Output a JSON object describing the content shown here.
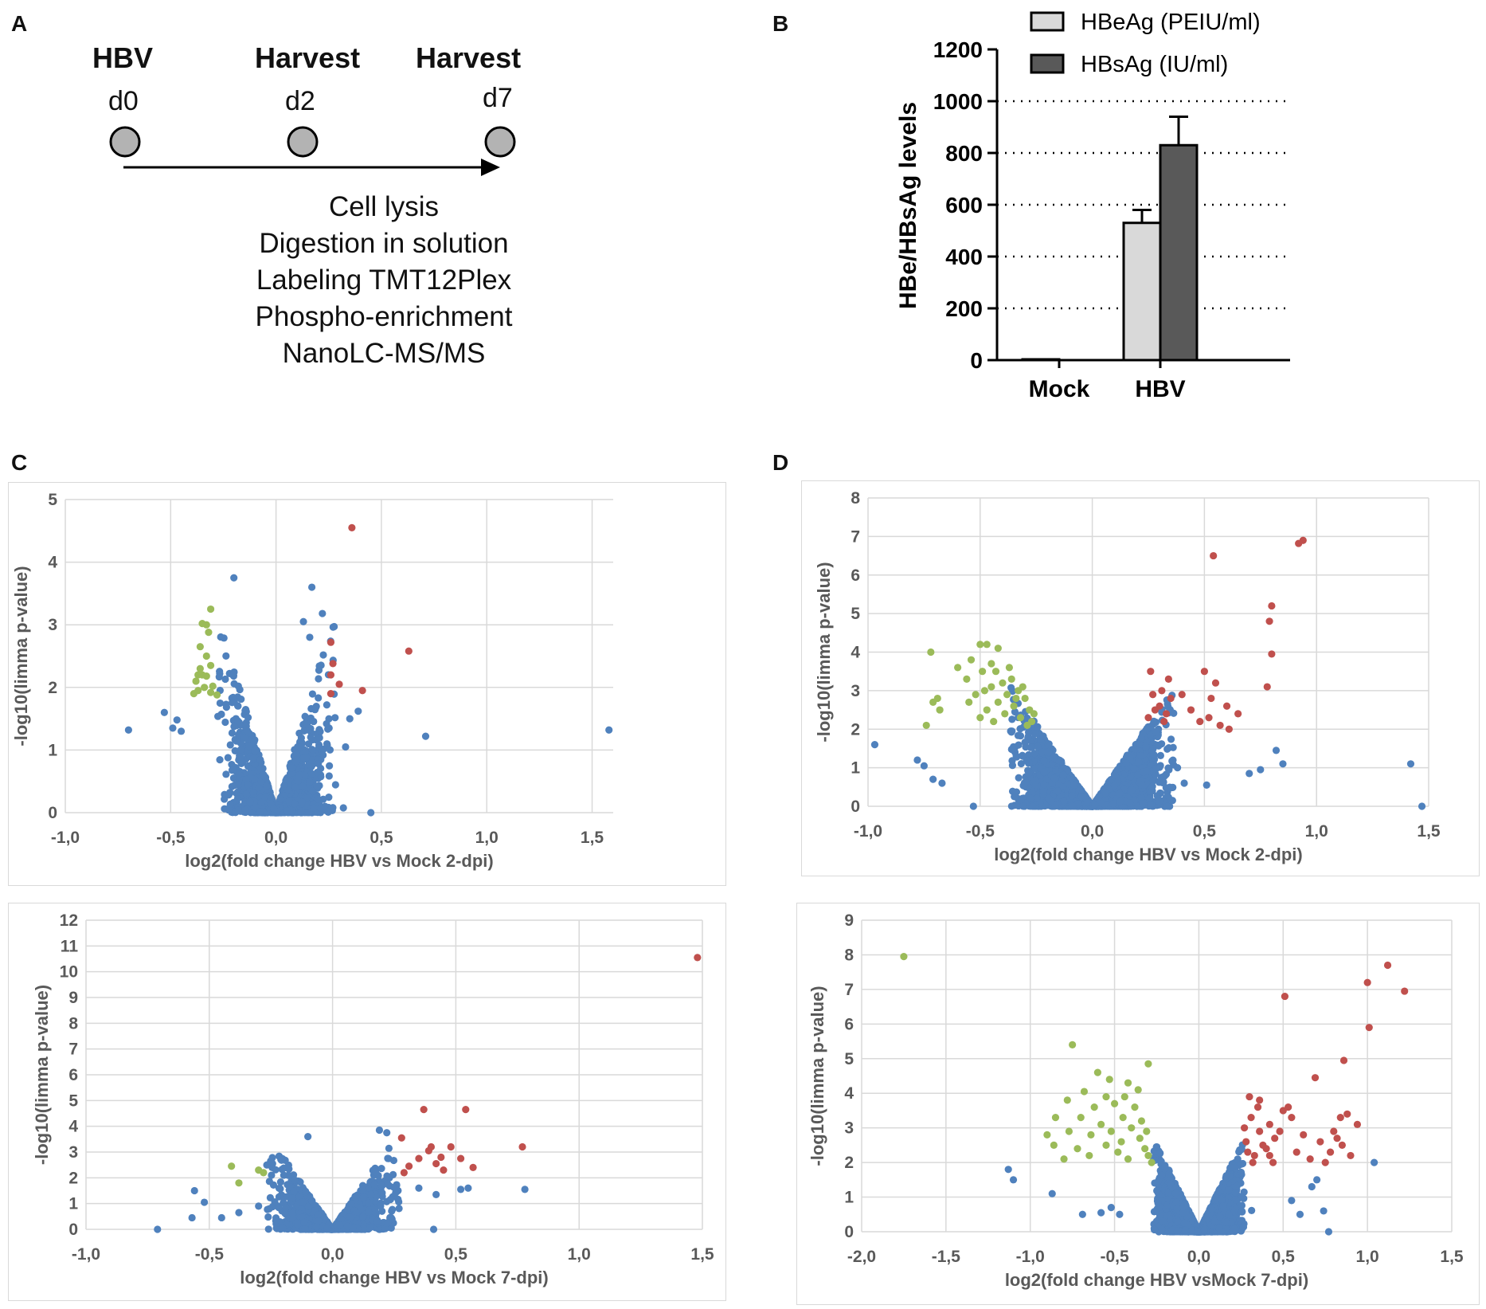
{
  "panel_labels": {
    "a": "A",
    "b": "B",
    "c": "C",
    "d": "D"
  },
  "timeline": {
    "events": [
      {
        "title": "HBV",
        "day": "d0"
      },
      {
        "title": "Harvest",
        "day": "d2"
      },
      {
        "title": "Harvest",
        "day": "d7"
      }
    ],
    "steps": [
      "Cell lysis",
      "Digestion in solution",
      "Labeling TMT12Plex",
      "Phospho-enrichment",
      "NanoLC-MS/MS"
    ]
  },
  "colors": {
    "up": "#c0504d",
    "down": "#9bbb59",
    "ns": "#4f81bd",
    "grid": "#d9d9d9",
    "hbeag": "#d9d9d9",
    "hbsag": "#595959"
  },
  "chart_data": [
    {
      "id": "B",
      "type": "bar",
      "categories": [
        "Mock",
        "HBV"
      ],
      "series": [
        {
          "name": "HBeAg (PEIU/ml)",
          "values": [
            3,
            530
          ],
          "errors": [
            0,
            50
          ]
        },
        {
          "name": "HBsAg (IU/ml)",
          "values": [
            0,
            830
          ],
          "errors": [
            0,
            110
          ]
        }
      ],
      "ylabel": "HBe/HBsAg levels",
      "ylim": [
        0,
        1200
      ],
      "yticks": [
        0,
        200,
        400,
        600,
        800,
        1000,
        1200
      ],
      "legend": "top"
    },
    {
      "id": "C-top",
      "type": "scatter",
      "xlabel": "log2(fold change HBV vs Mock 2-dpi)",
      "ylabel": "-log10(limma p-value)",
      "xlim": [
        -1.0,
        1.6
      ],
      "ylim": [
        0,
        5
      ],
      "xticks": [
        "-1,0",
        "-0,5",
        "0,0",
        "0,5",
        "1,0",
        "1,5"
      ],
      "yticks": [
        "0",
        "1",
        "2",
        "3",
        "4",
        "5"
      ],
      "highlight": {
        "up": [
          [
            0.36,
            4.55
          ],
          [
            0.63,
            2.58
          ],
          [
            0.26,
            2.72
          ],
          [
            0.27,
            2.38
          ],
          [
            0.26,
            2.2
          ],
          [
            0.3,
            2.05
          ],
          [
            0.41,
            1.95
          ],
          [
            0.26,
            1.9
          ]
        ],
        "down": [
          [
            -0.31,
            3.25
          ],
          [
            -0.33,
            3.0
          ],
          [
            -0.35,
            3.02
          ],
          [
            -0.32,
            2.88
          ],
          [
            -0.36,
            2.65
          ],
          [
            -0.31,
            2.35
          ],
          [
            -0.37,
            2.2
          ],
          [
            -0.35,
            2.2
          ],
          [
            -0.33,
            2.18
          ],
          [
            -0.38,
            2.1
          ],
          [
            -0.3,
            2.02
          ],
          [
            -0.37,
            1.95
          ],
          [
            -0.34,
            2.0
          ],
          [
            -0.31,
            1.92
          ],
          [
            -0.39,
            1.9
          ],
          [
            -0.28,
            1.88
          ],
          [
            -0.36,
            2.3
          ],
          [
            -0.33,
            2.5
          ]
        ]
      },
      "outliers": [
        [
          -0.2,
          3.75
        ],
        [
          0.17,
          3.6
        ],
        [
          0.13,
          3.05
        ],
        [
          0.22,
          3.18
        ],
        [
          0.16,
          2.8
        ],
        [
          -0.7,
          1.32
        ],
        [
          -0.53,
          1.6
        ],
        [
          -0.49,
          1.35
        ],
        [
          -0.47,
          1.48
        ],
        [
          -0.45,
          1.3
        ],
        [
          0.45,
          0.0
        ],
        [
          0.71,
          1.22
        ],
        [
          1.58,
          1.32
        ],
        [
          0.39,
          1.62
        ],
        [
          0.35,
          1.5
        ],
        [
          0.33,
          1.05
        ]
      ],
      "cloud": {
        "count": 1400,
        "spread": 0.21,
        "slope": 11.5,
        "ymax": 3.0
      }
    },
    {
      "id": "C-bottom",
      "type": "scatter",
      "xlabel": "log2(fold change HBV vs Mock 7-dpi)",
      "ylabel": "-log10(limma p-value)",
      "xlim": [
        -1.0,
        1.5
      ],
      "ylim": [
        0,
        12
      ],
      "xticks": [
        "-1,0",
        "-0,5",
        "0,0",
        "0,5",
        "1,0",
        "1,5"
      ],
      "yticks": [
        "0",
        "1",
        "2",
        "3",
        "4",
        "5",
        "6",
        "7",
        "8",
        "9",
        "10",
        "11",
        "12"
      ],
      "highlight": {
        "up": [
          [
            1.48,
            10.55
          ],
          [
            0.37,
            4.65
          ],
          [
            0.54,
            4.65
          ],
          [
            0.28,
            3.55
          ],
          [
            0.4,
            3.2
          ],
          [
            0.48,
            3.2
          ],
          [
            0.39,
            3.05
          ],
          [
            0.77,
            3.2
          ],
          [
            0.35,
            2.75
          ],
          [
            0.42,
            2.55
          ],
          [
            0.44,
            2.8
          ],
          [
            0.31,
            2.45
          ],
          [
            0.29,
            2.2
          ],
          [
            0.57,
            2.4
          ],
          [
            0.52,
            2.75
          ],
          [
            0.45,
            2.3
          ]
        ],
        "down": [
          [
            -0.41,
            2.45
          ],
          [
            -0.38,
            1.8
          ],
          [
            -0.3,
            2.3
          ],
          [
            -0.28,
            2.2
          ]
        ]
      },
      "outliers": [
        [
          -0.71,
          0.0
        ],
        [
          -0.57,
          0.45
        ],
        [
          -0.56,
          1.5
        ],
        [
          -0.52,
          1.05
        ],
        [
          -0.45,
          0.45
        ],
        [
          -0.38,
          0.65
        ],
        [
          -0.3,
          0.9
        ],
        [
          0.78,
          1.55
        ],
        [
          0.55,
          1.6
        ],
        [
          0.52,
          1.55
        ],
        [
          0.41,
          0.0
        ],
        [
          -0.1,
          3.6
        ],
        [
          0.19,
          3.85
        ],
        [
          0.22,
          3.75
        ],
        [
          0.35,
          1.6
        ],
        [
          0.42,
          1.35
        ]
      ],
      "cloud": {
        "count": 1500,
        "spread": 0.2,
        "slope": 14,
        "ymax": 3.3
      }
    },
    {
      "id": "D-top",
      "type": "scatter",
      "xlabel": "log2(fold change HBV vs Mock 2-dpi)",
      "ylabel": "-log10(limma p-value)",
      "xlim": [
        -1.0,
        1.5
      ],
      "ylim": [
        0,
        8
      ],
      "xticks": [
        "-1,0",
        "-0,5",
        "0,0",
        "0,5",
        "1,0",
        "1,5"
      ],
      "yticks": [
        "0",
        "1",
        "2",
        "3",
        "4",
        "5",
        "6",
        "7",
        "8"
      ],
      "highlight": {
        "up": [
          [
            0.92,
            6.82
          ],
          [
            0.94,
            6.9
          ],
          [
            0.54,
            6.5
          ],
          [
            0.8,
            5.2
          ],
          [
            0.79,
            4.8
          ],
          [
            0.8,
            3.95
          ],
          [
            0.78,
            3.1
          ],
          [
            0.26,
            3.5
          ],
          [
            0.34,
            3.3
          ],
          [
            0.5,
            3.5
          ],
          [
            0.55,
            3.2
          ],
          [
            0.53,
            2.8
          ],
          [
            0.6,
            2.6
          ],
          [
            0.65,
            2.4
          ],
          [
            0.52,
            2.3
          ],
          [
            0.57,
            2.1
          ],
          [
            0.61,
            2.0
          ],
          [
            0.31,
            3.0
          ],
          [
            0.27,
            2.9
          ],
          [
            0.3,
            2.6
          ],
          [
            0.33,
            2.4
          ],
          [
            0.25,
            2.3
          ],
          [
            0.28,
            2.5
          ],
          [
            0.32,
            2.2
          ],
          [
            0.35,
            2.8
          ],
          [
            0.4,
            2.9
          ],
          [
            0.44,
            2.5
          ],
          [
            0.48,
            2.2
          ]
        ],
        "down": [
          [
            -0.72,
            4.0
          ],
          [
            -0.5,
            4.2
          ],
          [
            -0.47,
            4.2
          ],
          [
            -0.42,
            4.1
          ],
          [
            -0.54,
            3.8
          ],
          [
            -0.45,
            3.7
          ],
          [
            -0.49,
            3.5
          ],
          [
            -0.6,
            3.6
          ],
          [
            -0.56,
            3.3
          ],
          [
            -0.69,
            2.8
          ],
          [
            -0.68,
            2.5
          ],
          [
            -0.71,
            2.7
          ],
          [
            -0.74,
            2.1
          ],
          [
            -0.52,
            2.9
          ],
          [
            -0.55,
            2.7
          ],
          [
            -0.45,
            3.1
          ],
          [
            -0.4,
            3.2
          ],
          [
            -0.36,
            3.3
          ],
          [
            -0.33,
            3.0
          ],
          [
            -0.3,
            2.8
          ],
          [
            -0.28,
            2.5
          ],
          [
            -0.35,
            2.6
          ],
          [
            -0.32,
            2.3
          ],
          [
            -0.29,
            2.1
          ],
          [
            -0.27,
            2.2
          ],
          [
            -0.38,
            2.9
          ],
          [
            -0.42,
            2.7
          ],
          [
            -0.47,
            2.5
          ],
          [
            -0.5,
            2.3
          ],
          [
            -0.44,
            2.2
          ],
          [
            -0.39,
            2.4
          ],
          [
            -0.34,
            2.8
          ],
          [
            -0.31,
            3.1
          ],
          [
            -0.26,
            2.4
          ],
          [
            -0.43,
            3.5
          ],
          [
            -0.37,
            3.6
          ],
          [
            -0.48,
            3.0
          ]
        ]
      },
      "outliers": [
        [
          -0.97,
          1.6
        ],
        [
          -0.78,
          1.2
        ],
        [
          -0.75,
          1.05
        ],
        [
          -0.71,
          0.7
        ],
        [
          -0.67,
          0.6
        ],
        [
          -0.53,
          0.0
        ],
        [
          1.42,
          1.1
        ],
        [
          1.47,
          0.0
        ],
        [
          0.85,
          1.1
        ],
        [
          0.82,
          1.45
        ],
        [
          0.75,
          0.95
        ],
        [
          0.7,
          0.85
        ],
        [
          0.51,
          0.55
        ],
        [
          0.41,
          0.6
        ],
        [
          0.38,
          1.0
        ]
      ],
      "cloud": {
        "count": 3400,
        "spread": 0.27,
        "slope": 8.5,
        "ymax": 3.1
      }
    },
    {
      "id": "D-bottom",
      "type": "scatter",
      "xlabel": "log2(fold change HBV vsMock 7-dpi)",
      "ylabel": "-log10(limma p-value)",
      "xlim": [
        -2.0,
        1.5
      ],
      "ylim": [
        0,
        9
      ],
      "xticks": [
        "-2,0",
        "-1,5",
        "-1,0",
        "-0,5",
        "0,0",
        "0,5",
        "1,0",
        "1,5"
      ],
      "yticks": [
        "0",
        "1",
        "2",
        "3",
        "4",
        "5",
        "6",
        "7",
        "8",
        "9"
      ],
      "highlight": {
        "up": [
          [
            1.12,
            7.7
          ],
          [
            1.22,
            6.95
          ],
          [
            1.0,
            7.2
          ],
          [
            0.51,
            6.8
          ],
          [
            1.01,
            5.9
          ],
          [
            0.86,
            4.95
          ],
          [
            0.69,
            4.45
          ],
          [
            0.3,
            3.9
          ],
          [
            0.35,
            3.6
          ],
          [
            0.5,
            3.5
          ],
          [
            0.55,
            3.3
          ],
          [
            0.62,
            2.8
          ],
          [
            0.72,
            2.6
          ],
          [
            0.8,
            2.9
          ],
          [
            0.84,
            3.3
          ],
          [
            0.88,
            3.4
          ],
          [
            0.94,
            3.1
          ],
          [
            0.85,
            2.5
          ],
          [
            0.78,
            2.3
          ],
          [
            0.66,
            2.1
          ],
          [
            0.58,
            2.3
          ],
          [
            0.45,
            2.7
          ],
          [
            0.42,
            3.1
          ],
          [
            0.38,
            2.5
          ],
          [
            0.33,
            2.2
          ],
          [
            0.28,
            2.6
          ],
          [
            0.27,
            3.0
          ],
          [
            0.31,
            3.3
          ],
          [
            0.36,
            3.8
          ],
          [
            0.42,
            2.2
          ],
          [
            0.48,
            2.9
          ],
          [
            0.53,
            3.6
          ],
          [
            0.4,
            2.4
          ],
          [
            0.32,
            2.0
          ],
          [
            0.29,
            2.3
          ],
          [
            0.36,
            2.9
          ],
          [
            0.44,
            2.0
          ],
          [
            0.75,
            2.0
          ],
          [
            0.9,
            2.2
          ],
          [
            0.82,
            2.7
          ]
        ],
        "down": [
          [
            -1.75,
            7.95
          ],
          [
            -0.75,
            5.4
          ],
          [
            -0.3,
            4.85
          ],
          [
            -0.6,
            4.6
          ],
          [
            -0.42,
            4.3
          ],
          [
            -0.53,
            4.4
          ],
          [
            -0.68,
            4.05
          ],
          [
            -0.78,
            3.8
          ],
          [
            -0.85,
            3.3
          ],
          [
            -0.9,
            2.8
          ],
          [
            -0.72,
            2.4
          ],
          [
            -0.65,
            2.2
          ],
          [
            -0.8,
            2.1
          ],
          [
            -0.77,
            2.9
          ],
          [
            -0.62,
            3.6
          ],
          [
            -0.55,
            3.9
          ],
          [
            -0.5,
            3.7
          ],
          [
            -0.45,
            3.3
          ],
          [
            -0.4,
            3.0
          ],
          [
            -0.35,
            2.7
          ],
          [
            -0.32,
            2.4
          ],
          [
            -0.3,
            2.2
          ],
          [
            -0.28,
            2.0
          ],
          [
            -0.46,
            2.6
          ],
          [
            -0.52,
            2.9
          ],
          [
            -0.58,
            3.1
          ],
          [
            -0.38,
            3.6
          ],
          [
            -0.34,
            3.2
          ],
          [
            -0.31,
            2.9
          ],
          [
            -0.36,
            4.1
          ],
          [
            -0.44,
            3.9
          ],
          [
            -0.7,
            3.3
          ],
          [
            -0.48,
            2.3
          ],
          [
            -0.55,
            2.5
          ],
          [
            -0.42,
            2.1
          ],
          [
            -0.64,
            2.8
          ],
          [
            -0.86,
            2.5
          ]
        ]
      },
      "outliers": [
        [
          -1.13,
          1.8
        ],
        [
          -1.1,
          1.5
        ],
        [
          -0.87,
          1.1
        ],
        [
          -0.69,
          0.5
        ],
        [
          -0.58,
          0.55
        ],
        [
          -0.52,
          0.7
        ],
        [
          -0.47,
          0.5
        ],
        [
          1.04,
          2.0
        ],
        [
          0.77,
          0.0
        ],
        [
          0.74,
          0.6
        ],
        [
          0.6,
          0.5
        ],
        [
          0.67,
          1.3
        ],
        [
          0.7,
          1.5
        ],
        [
          0.55,
          0.9
        ]
      ],
      "cloud": {
        "count": 3800,
        "spread": 0.2,
        "slope": 10,
        "ymax": 3.3
      }
    }
  ]
}
